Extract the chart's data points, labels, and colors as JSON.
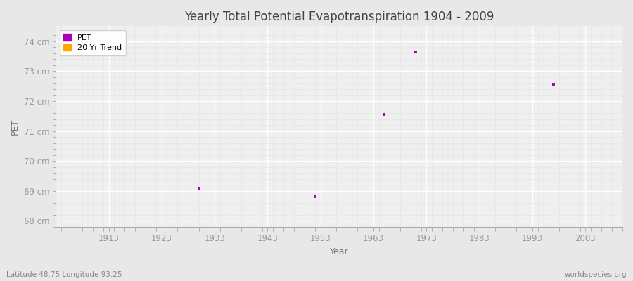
{
  "title": "Yearly Total Potential Evapotranspiration 1904 - 2009",
  "xlabel": "Year",
  "ylabel": "PET",
  "subtitle_left": "Latitude 48.75 Longitude 93.25",
  "subtitle_right": "worldspecies.org",
  "xlim": [
    1903,
    2010
  ],
  "ylim": [
    67.8,
    74.5
  ],
  "yticks": [
    68,
    69,
    70,
    71,
    72,
    73,
    74
  ],
  "ytick_labels": [
    "68 cm",
    "69 cm",
    "70 cm",
    "71 cm",
    "72 cm",
    "73 cm",
    "74 cm"
  ],
  "xticks": [
    1913,
    1923,
    1933,
    1943,
    1953,
    1963,
    1973,
    1983,
    1993,
    2003
  ],
  "pet_x": [
    1930,
    1952,
    1965,
    1971,
    1997
  ],
  "pet_y": [
    69.1,
    68.82,
    71.55,
    73.65,
    72.55
  ],
  "pet_color": "#aa00bb",
  "trend_color": "#FFA500",
  "background_color": "#e8e8e8",
  "plot_bg_color": "#efefef",
  "grid_major_color": "#ffffff",
  "grid_minor_color": "#e0e0e0",
  "legend_labels": [
    "PET",
    "20 Yr Trend"
  ],
  "marker_size": 3.5,
  "tick_color": "#999999",
  "label_color": "#777777",
  "title_color": "#444444",
  "title_fontsize": 12,
  "tick_fontsize": 8.5,
  "label_fontsize": 9
}
